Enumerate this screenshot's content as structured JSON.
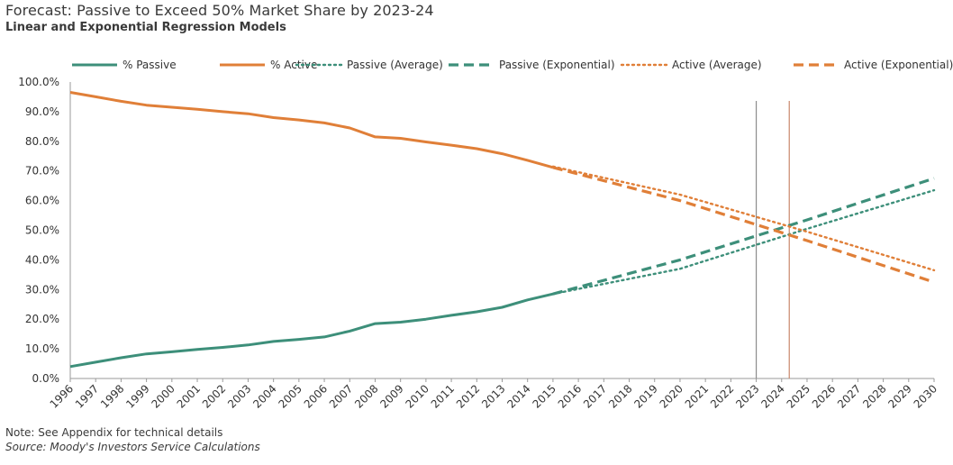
{
  "chart_data": {
    "type": "line",
    "title": "Forecast: Passive to Exceed 50% Market Share by 2023-24",
    "subtitle": "Linear and Exponential Regression Models",
    "note": "Note: See Appendix for technical details",
    "source": "Source: Moody's Investors Service Calculations",
    "x": [
      1996,
      1997,
      1998,
      1999,
      2000,
      2001,
      2002,
      2003,
      2004,
      2005,
      2006,
      2007,
      2008,
      2009,
      2010,
      2011,
      2012,
      2013,
      2014,
      2015,
      2016,
      2017,
      2018,
      2019,
      2020,
      2021,
      2022,
      2023,
      2024,
      2025,
      2026,
      2027,
      2028,
      2029,
      2030
    ],
    "x_tick_labels": [
      "1996",
      "1997",
      "1998",
      "1999",
      "2000",
      "2001",
      "2002",
      "2003",
      "2004",
      "2005",
      "2006",
      "2007",
      "2008",
      "2009",
      "2010",
      "2011",
      "2012",
      "2013",
      "2014",
      "2015",
      "2016",
      "2017",
      "2018",
      "2019",
      "2020",
      "2021",
      "2022",
      "2023",
      "2024",
      "2025",
      "2026",
      "2027",
      "2028",
      "2029",
      "2030"
    ],
    "ylim": [
      0,
      100
    ],
    "y_ticks": [
      0,
      10,
      20,
      30,
      40,
      50,
      60,
      70,
      80,
      90,
      100
    ],
    "y_tick_labels": [
      "0.0%",
      "10.0%",
      "20.0%",
      "30.0%",
      "40.0%",
      "50.0%",
      "60.0%",
      "70.0%",
      "80.0%",
      "90.0%",
      "100.0%"
    ],
    "legend_position": "top",
    "grid": false,
    "reference_lines": [
      {
        "x": 2023,
        "color": "#8c8c8c"
      },
      {
        "x": 2024.3,
        "color": "#c9876a"
      }
    ],
    "series": [
      {
        "name": "% Passive",
        "style": "solid",
        "color": "#3d8f7a",
        "x": [
          1996,
          1997,
          1998,
          1999,
          2000,
          2001,
          2002,
          2003,
          2004,
          2005,
          2006,
          2007,
          2008,
          2009,
          2010,
          2011,
          2012,
          2013,
          2014,
          2015
        ],
        "values": [
          4,
          5.5,
          7,
          8.3,
          9,
          9.8,
          10.5,
          11.3,
          12.5,
          13.2,
          14,
          16,
          18.5,
          19,
          20,
          21.3,
          22.5,
          24,
          26.5,
          28.5
        ]
      },
      {
        "name": "% Active",
        "style": "solid",
        "color": "#e07f38",
        "x": [
          1996,
          1997,
          1998,
          1999,
          2000,
          2001,
          2002,
          2003,
          2004,
          2005,
          2006,
          2007,
          2008,
          2009,
          2010,
          2011,
          2012,
          2013,
          2014,
          2015
        ],
        "values": [
          96.5,
          95,
          93.5,
          92.2,
          91.5,
          90.8,
          90,
          89.3,
          88,
          87.2,
          86.2,
          84.5,
          81.5,
          81,
          79.8,
          78.7,
          77.5,
          75.8,
          73.6,
          71.2
        ]
      },
      {
        "name": "Passive (Average)",
        "style": "dotted",
        "color": "#3d8f7a",
        "x": [
          2015,
          2020,
          2025,
          2030
        ],
        "values": [
          28.5,
          37,
          50.5,
          63.5
        ]
      },
      {
        "name": "Passive (Exponential)",
        "style": "dashed",
        "color": "#3d8f7a",
        "x": [
          2015,
          2020,
          2025,
          2030
        ],
        "values": [
          28.5,
          40,
          53.5,
          67.5
        ]
      },
      {
        "name": "Active (Average)",
        "style": "dotted",
        "color": "#e07f38",
        "x": [
          2015,
          2020,
          2025,
          2030
        ],
        "values": [
          71.5,
          62,
          49.5,
          36.5
        ]
      },
      {
        "name": "Active (Exponential)",
        "style": "dashed",
        "color": "#e07f38",
        "x": [
          2015,
          2020,
          2025,
          2030
        ],
        "values": [
          71.2,
          60,
          46.5,
          32.5
        ]
      }
    ]
  }
}
